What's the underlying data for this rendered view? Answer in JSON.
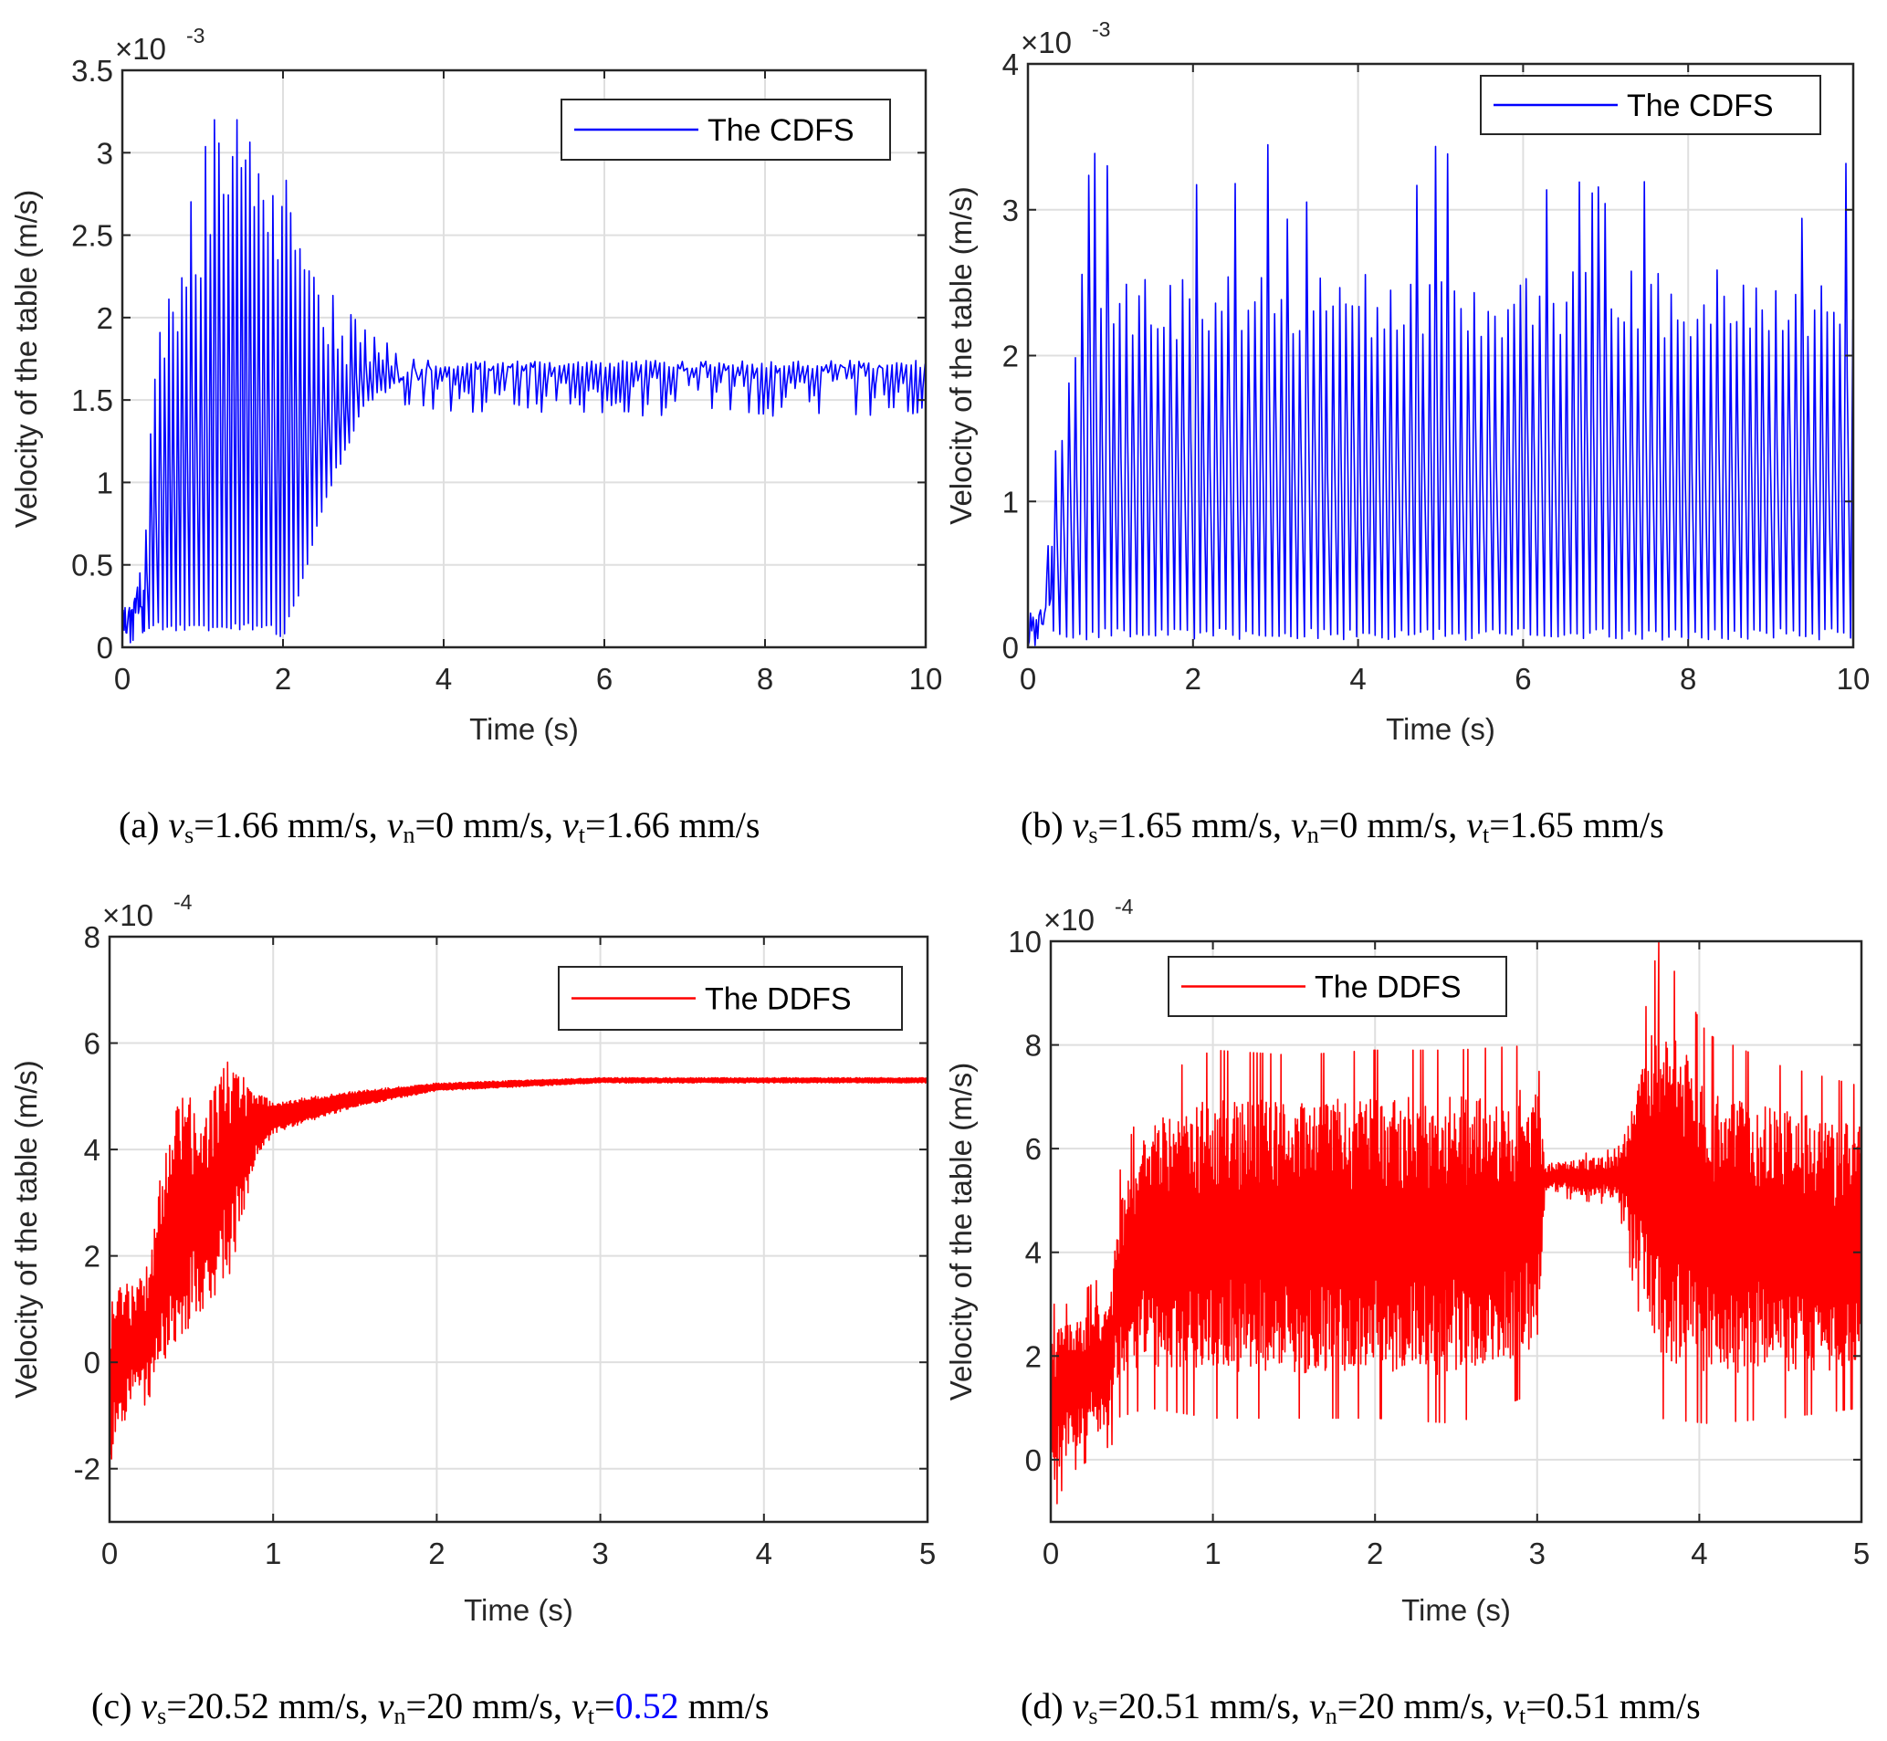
{
  "figure": {
    "panels": [
      {
        "id": "a",
        "caption": {
          "prefix": "(a) ",
          "vs": "1.66",
          "vn": "0",
          "vt": "1.66",
          "unit": " mm/s",
          "vt_color": "#000000"
        },
        "legend": {
          "label": "The CDFS",
          "color": "#0000ff",
          "position": "top-right"
        }
      },
      {
        "id": "b",
        "caption": {
          "prefix": "(b) ",
          "vs": "1.65",
          "vn": "0",
          "vt": "1.65",
          "unit": " mm/s",
          "vt_color": "#000000"
        },
        "legend": {
          "label": "The CDFS",
          "color": "#0000ff",
          "position": "top-right"
        }
      },
      {
        "id": "c",
        "caption": {
          "prefix": "(c) ",
          "vs": "20.52",
          "vn": "20",
          "vt": "0.52",
          "unit": " mm/s",
          "vt_color": "#0000ff"
        },
        "legend": {
          "label": "The DDFS",
          "color": "#ff0000",
          "position": "top-right"
        }
      },
      {
        "id": "d",
        "caption": {
          "prefix": "(d) ",
          "vs": "20.51",
          "vn": "20",
          "vt": "0.51",
          "unit": " mm/s",
          "vt_color": "#000000"
        },
        "legend": {
          "label": "The DDFS",
          "color": "#ff0000",
          "position": "top-right"
        }
      }
    ],
    "caption_symbols": {
      "v": "v",
      "s": "s",
      "n": "n",
      "t": "t",
      "eq": "=",
      "sep": ", "
    }
  },
  "chart_data": [
    {
      "id": "a",
      "type": "line",
      "title": "",
      "xlabel": "Time (s)",
      "ylabel": "Velocity of the table (m/s)",
      "y_exponent_label": "×10",
      "y_exponent": "-3",
      "xlim": [
        0,
        10
      ],
      "ylim": [
        0,
        3.5
      ],
      "xticks": [
        0,
        2,
        4,
        6,
        8,
        10
      ],
      "yticks": [
        0,
        0.5,
        1,
        1.5,
        2,
        2.5,
        3,
        3.5
      ],
      "ytick_labels": [
        "0",
        "0.5",
        "1",
        "1.5",
        "2",
        "2.5",
        "3",
        "3.5"
      ],
      "grid": true,
      "legend_position": "top-right",
      "series": [
        {
          "name": "The CDFS",
          "color": "#0000ff",
          "units": "x1e-3 m/s",
          "description": "Stick-slip oscillation that decays to steady sliding at ~1.70e-3 m/s after ~4 s",
          "envelope_t": [
            0,
            0.1,
            0.25,
            0.35,
            0.5,
            0.7,
            1.0,
            1.1,
            1.3,
            1.55,
            1.8,
            2.0,
            2.2,
            2.5,
            3.0,
            3.5,
            4.0,
            5.0,
            10.0
          ],
          "envelope_max": [
            0.3,
            0.3,
            0.55,
            1.65,
            2.05,
            2.3,
            2.75,
            3.15,
            2.95,
            3.2,
            2.8,
            2.9,
            2.5,
            2.2,
            1.95,
            1.78,
            1.72,
            1.71,
            1.71
          ],
          "envelope_min": [
            0.0,
            0.02,
            0.05,
            0.12,
            0.1,
            0.1,
            0.1,
            0.1,
            0.1,
            0.1,
            0.1,
            0.05,
            0.3,
            0.85,
            1.45,
            1.62,
            1.68,
            1.69,
            1.69
          ],
          "cycle_period_s": 0.057,
          "steady_state": 1.7
        }
      ]
    },
    {
      "id": "b",
      "type": "line",
      "title": "",
      "xlabel": "Time (s)",
      "ylabel": "Velocity of the table (m/s)",
      "y_exponent_label": "×10",
      "y_exponent": "-3",
      "xlim": [
        0,
        10
      ],
      "ylim": [
        0,
        4
      ],
      "xticks": [
        0,
        2,
        4,
        6,
        8,
        10
      ],
      "yticks": [
        0,
        1,
        2,
        3,
        4
      ],
      "ytick_labels": [
        "0",
        "1",
        "2",
        "3",
        "4"
      ],
      "grid": true,
      "legend_position": "top-right",
      "series": [
        {
          "name": "The CDFS",
          "color": "#0000ff",
          "units": "x1e-3 m/s",
          "description": "Sustained stick-slip oscillation between ~0.05e-3 and ~2.5-3.45e-3 m/s over the full 10 s",
          "envelope_t": [
            0,
            0.2,
            0.25,
            0.4,
            0.6,
            1.0,
            10.0
          ],
          "envelope_max": [
            0.25,
            0.3,
            1.5,
            1.55,
            2.6,
            2.55,
            2.6
          ],
          "envelope_min": [
            0.0,
            0.0,
            0.05,
            0.05,
            0.05,
            0.05,
            0.05
          ],
          "peak_spikes_max": 3.45,
          "cycle_period_s": 0.078
        }
      ]
    },
    {
      "id": "c",
      "type": "line",
      "title": "",
      "xlabel": "Time (s)",
      "ylabel": "Velocity of the table (m/s)",
      "y_exponent_label": "×10",
      "y_exponent": "-4",
      "xlim": [
        0,
        5
      ],
      "ylim": [
        -3,
        8
      ],
      "xticks": [
        0,
        1,
        2,
        3,
        4,
        5
      ],
      "yticks": [
        -2,
        0,
        2,
        4,
        6,
        8
      ],
      "ytick_labels": [
        "-2",
        "0",
        "2",
        "4",
        "6",
        "8"
      ],
      "grid": true,
      "legend_position": "top-right",
      "series": [
        {
          "name": "The DDFS",
          "color": "#ff0000",
          "units": "x1e-4 m/s",
          "description": "Irregular stick-slip for t<0.8 s (min ~-2.7e-4, max ~6.6e-4), then damped oscillation converging to ~5.3e-4 m/s",
          "envelope_t": [
            0,
            0.05,
            0.25,
            0.3,
            0.45,
            0.55,
            0.75,
            0.9,
            1.0,
            1.5,
            2.0,
            3.0,
            5.0
          ],
          "envelope_max": [
            1.6,
            1.8,
            2.3,
            4.0,
            6.2,
            5.5,
            6.6,
            5.1,
            4.9,
            5.1,
            5.25,
            5.35,
            5.35
          ],
          "envelope_min": [
            -2.7,
            -1.6,
            -1.2,
            -0.7,
            -0.3,
            0.0,
            1.0,
            3.8,
            4.3,
            4.8,
            5.1,
            5.25,
            5.25
          ],
          "steady_state": 5.3
        }
      ]
    },
    {
      "id": "d",
      "type": "line",
      "title": "",
      "xlabel": "Time (s)",
      "ylabel": "Velocity of the table (m/s)",
      "y_exponent_label": "×10",
      "y_exponent": "-4",
      "xlim": [
        0,
        5
      ],
      "ylim": [
        -1.2,
        10
      ],
      "xticks": [
        0,
        1,
        2,
        3,
        4,
        5
      ],
      "yticks": [
        0,
        2,
        4,
        6,
        8,
        10
      ],
      "ytick_labels": [
        "0",
        "2",
        "4",
        "6",
        "8",
        "10"
      ],
      "grid": true,
      "legend_position": "top-left",
      "series": [
        {
          "name": "The DDFS",
          "color": "#ff0000",
          "units": "x1e-4 m/s",
          "description": "Persistent irregular stick-slip around ~5.4e-4 m/s, quieter band near 3.0-3.5 s, max spike ~10e-4 at t~3.75 s",
          "envelope_t": [
            0,
            0.1,
            0.38,
            0.4,
            0.6,
            1.0,
            1.5,
            2.0,
            2.5,
            3.0,
            3.05,
            3.5,
            3.75,
            4.05,
            4.5,
            5.0
          ],
          "envelope_max": [
            3.0,
            3.0,
            3.7,
            5.3,
            7.3,
            7.9,
            7.8,
            7.9,
            7.9,
            8.0,
            5.8,
            6.0,
            10.0,
            8.2,
            7.6,
            7.2
          ],
          "envelope_min": [
            -1.2,
            -0.3,
            0.3,
            0.8,
            1.0,
            0.8,
            0.8,
            0.8,
            0.7,
            1.3,
            5.1,
            4.9,
            0.8,
            0.7,
            0.8,
            1.0
          ],
          "quiet_band_t": [
            3.0,
            3.5
          ],
          "max_spike": {
            "t": 3.75,
            "value": 10.0
          }
        }
      ]
    }
  ]
}
